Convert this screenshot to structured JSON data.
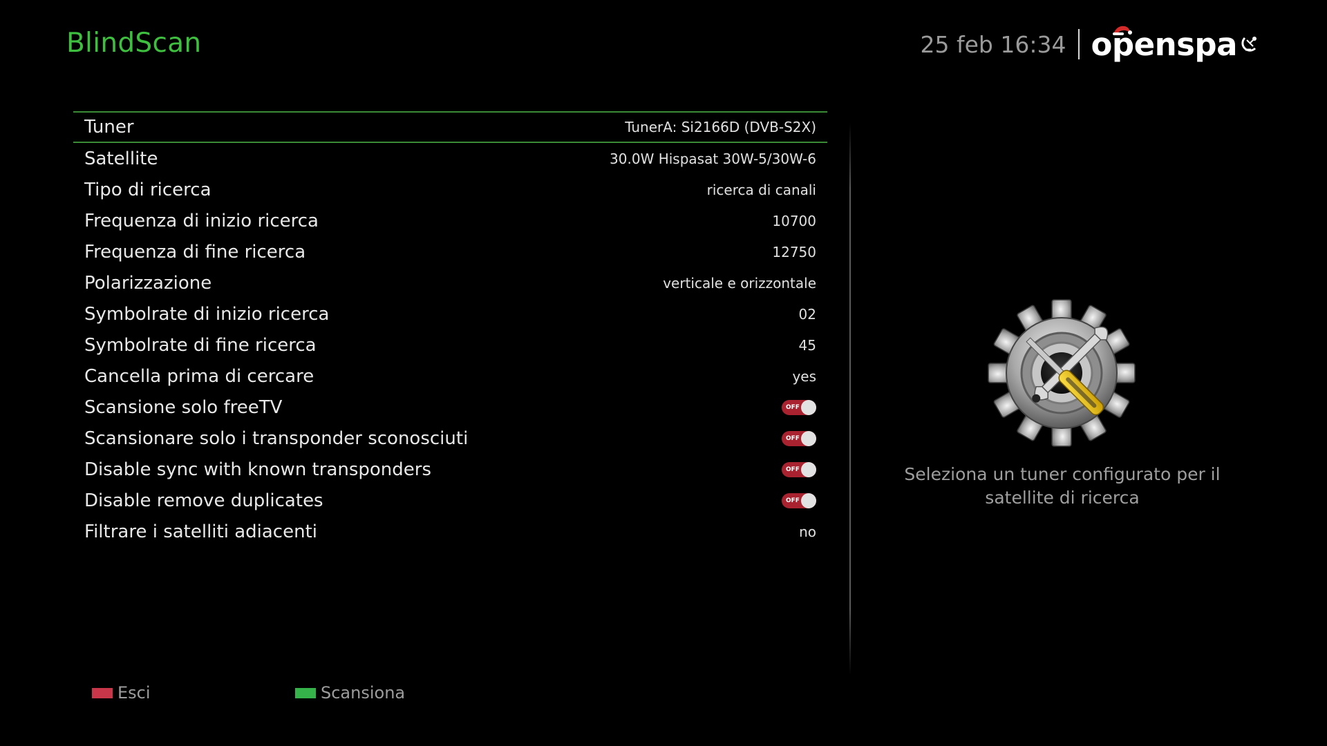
{
  "header": {
    "title": "BlindScan",
    "clock": "25 feb 16:34",
    "logo_text": "openspa"
  },
  "settings": [
    {
      "label": "Tuner",
      "value": "TunerA: Si2166D (DVB-S2X)",
      "type": "text",
      "selected": true
    },
    {
      "label": "Satellite",
      "value": "30.0W Hispasat 30W-5/30W-6",
      "type": "text"
    },
    {
      "label": "Tipo di ricerca",
      "value": "ricerca di canali",
      "type": "text"
    },
    {
      "label": "Frequenza di inizio ricerca",
      "value": "10700",
      "type": "text"
    },
    {
      "label": "Frequenza di fine ricerca",
      "value": "12750",
      "type": "text"
    },
    {
      "label": "Polarizzazione",
      "value": "verticale e orizzontale",
      "type": "text"
    },
    {
      "label": "Symbolrate di inizio ricerca",
      "value": "02",
      "type": "text"
    },
    {
      "label": "Symbolrate di fine ricerca",
      "value": "45",
      "type": "text"
    },
    {
      "label": "Cancella prima di cercare",
      "value": "yes",
      "type": "text"
    },
    {
      "label": "Scansione solo freeTV",
      "value": "OFF",
      "type": "toggle"
    },
    {
      "label": "Scansionare solo i transponder sconosciuti",
      "value": "OFF",
      "type": "toggle"
    },
    {
      "label": "Disable sync with known transponders",
      "value": "OFF",
      "type": "toggle"
    },
    {
      "label": "Disable remove duplicates",
      "value": "OFF",
      "type": "toggle"
    },
    {
      "label": "Filtrare i satelliti adiacenti",
      "value": "no",
      "type": "text"
    }
  ],
  "description": {
    "line1": "Seleziona un tuner configurato per il",
    "line2": "satellite di ricerca"
  },
  "footer": {
    "exit_label": "Esci",
    "exit_color": "#c8364a",
    "scan_label": "Scansiona",
    "scan_color": "#35b34a"
  },
  "colors": {
    "title": "#3fbf3f",
    "selection_border": "#3a8a36",
    "toggle_off": "#a8232f"
  },
  "icons": {
    "settings_illustration": "gear-wrench-screwdriver-icon",
    "logo_hat": "santa-hat-icon",
    "logo_dish": "satellite-dish-icon"
  }
}
